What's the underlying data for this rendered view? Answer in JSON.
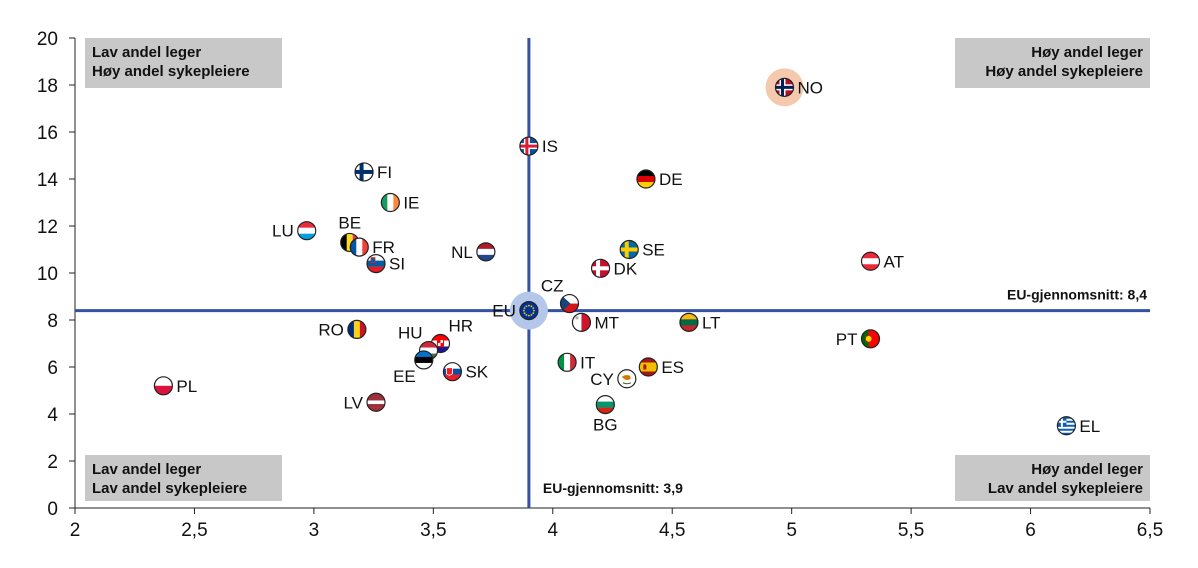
{
  "chart_data": {
    "type": "scatter",
    "title": "",
    "xlabel": "",
    "ylabel": "",
    "xlim": [
      2,
      6.5
    ],
    "ylim": [
      0,
      20
    ],
    "x_ticks": [
      "2",
      "2,5",
      "3",
      "3,5",
      "4",
      "4,5",
      "5",
      "5,5",
      "6",
      "6,5"
    ],
    "y_ticks": [
      "0",
      "2",
      "4",
      "6",
      "8",
      "10",
      "12",
      "14",
      "16",
      "18",
      "20"
    ],
    "grid": false,
    "reference_lines": {
      "vertical": {
        "x": 3.9,
        "label": "EU-gjennomsnitt: 3,9"
      },
      "horizontal": {
        "y": 8.4,
        "label": "EU-gjennomsnitt: 8,4"
      }
    },
    "quadrant_labels": {
      "top_left": [
        "Lav andel leger",
        "Høy andel sykepleiere"
      ],
      "top_right": [
        "Høy andel leger",
        "Høy andel sykepleiere"
      ],
      "bottom_left": [
        "Lav andel leger",
        "Lav andel sykepleiere"
      ],
      "bottom_right": [
        "Høy andel leger",
        "Lav andel sykepleiere"
      ]
    },
    "colors": {
      "axis_line": "#3451a3",
      "highlight_no": "#f5c9ad",
      "highlight_eu": "#b4c7ea"
    },
    "points": [
      {
        "label": "NO",
        "x": 4.97,
        "y": 17.9,
        "flag": "norway",
        "label_side": "right",
        "highlight": true
      },
      {
        "label": "IS",
        "x": 3.9,
        "y": 15.4,
        "flag": "iceland",
        "label_side": "right"
      },
      {
        "label": "FI",
        "x": 3.21,
        "y": 14.3,
        "flag": "finland",
        "label_side": "right"
      },
      {
        "label": "DE",
        "x": 4.39,
        "y": 14.0,
        "flag": "germany",
        "label_side": "right"
      },
      {
        "label": "IE",
        "x": 3.32,
        "y": 13.0,
        "flag": "ireland",
        "label_side": "right"
      },
      {
        "label": "LU",
        "x": 2.97,
        "y": 11.8,
        "flag": "luxembourg",
        "label_side": "left"
      },
      {
        "label": "BE",
        "x": 3.15,
        "y": 11.3,
        "flag": "belgium",
        "label_side": "above"
      },
      {
        "label": "FR",
        "x": 3.19,
        "y": 11.1,
        "flag": "france",
        "label_side": "right"
      },
      {
        "label": "NL",
        "x": 3.72,
        "y": 10.9,
        "flag": "netherlands",
        "label_side": "left"
      },
      {
        "label": "SE",
        "x": 4.32,
        "y": 11.0,
        "flag": "sweden",
        "label_side": "right"
      },
      {
        "label": "AT",
        "x": 5.33,
        "y": 10.5,
        "flag": "austria",
        "label_side": "right"
      },
      {
        "label": "SI",
        "x": 3.26,
        "y": 10.4,
        "flag": "slovenia",
        "label_side": "right"
      },
      {
        "label": "DK",
        "x": 4.2,
        "y": 10.2,
        "flag": "denmark",
        "label_side": "right"
      },
      {
        "label": "CZ",
        "x": 4.07,
        "y": 8.7,
        "flag": "czechia",
        "label_side": "above-left"
      },
      {
        "label": "EU",
        "x": 3.9,
        "y": 8.4,
        "flag": "eu",
        "label_side": "left",
        "highlight": true
      },
      {
        "label": "MT",
        "x": 4.12,
        "y": 7.9,
        "flag": "malta",
        "label_side": "right"
      },
      {
        "label": "LT",
        "x": 4.57,
        "y": 7.9,
        "flag": "lithuania",
        "label_side": "right"
      },
      {
        "label": "RO",
        "x": 3.18,
        "y": 7.6,
        "flag": "romania",
        "label_side": "left"
      },
      {
        "label": "HR",
        "x": 3.53,
        "y": 7.0,
        "flag": "croatia",
        "label_side": "above-right"
      },
      {
        "label": "HU",
        "x": 3.48,
        "y": 6.7,
        "flag": "hungary",
        "label_side": "above-left"
      },
      {
        "label": "PT",
        "x": 5.33,
        "y": 7.2,
        "flag": "portugal",
        "label_side": "left"
      },
      {
        "label": "EE",
        "x": 3.46,
        "y": 6.3,
        "flag": "estonia",
        "label_side": "below-left"
      },
      {
        "label": "IT",
        "x": 4.06,
        "y": 6.2,
        "flag": "italy",
        "label_side": "right"
      },
      {
        "label": "ES",
        "x": 4.4,
        "y": 6.0,
        "flag": "spain",
        "label_side": "right"
      },
      {
        "label": "SK",
        "x": 3.58,
        "y": 5.8,
        "flag": "slovakia",
        "label_side": "right"
      },
      {
        "label": "CY",
        "x": 4.31,
        "y": 5.5,
        "flag": "cyprus",
        "label_side": "left"
      },
      {
        "label": "PL",
        "x": 2.37,
        "y": 5.2,
        "flag": "poland",
        "label_side": "right"
      },
      {
        "label": "LV",
        "x": 3.26,
        "y": 4.5,
        "flag": "latvia",
        "label_side": "left"
      },
      {
        "label": "BG",
        "x": 4.22,
        "y": 4.4,
        "flag": "bulgaria",
        "label_side": "below"
      },
      {
        "label": "EL",
        "x": 6.15,
        "y": 3.5,
        "flag": "greece",
        "label_side": "right"
      }
    ]
  }
}
